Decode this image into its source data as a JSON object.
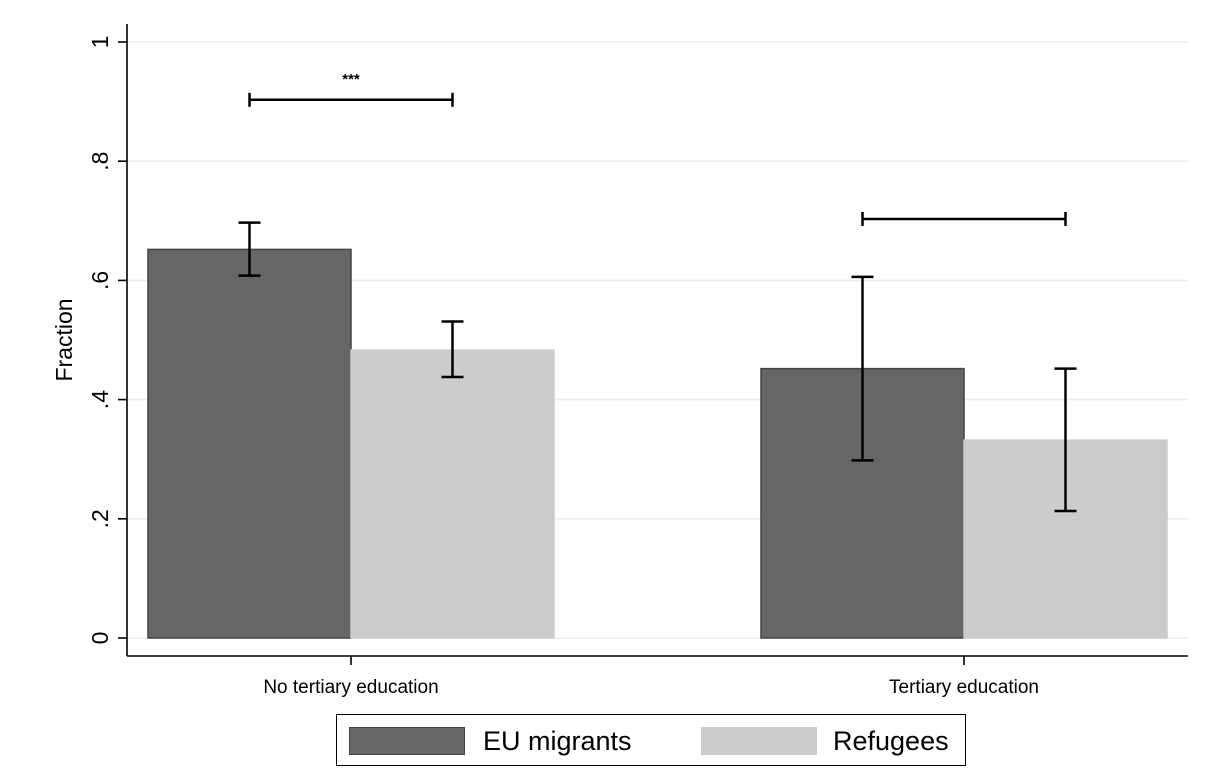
{
  "chart_data": {
    "type": "bar",
    "title": "",
    "xlabel": "",
    "ylabel": "Fraction",
    "ylim": [
      0,
      1
    ],
    "yticks": [
      {
        "value": 0,
        "label": "0"
      },
      {
        "value": 0.2,
        "label": ".2"
      },
      {
        "value": 0.4,
        "label": ".4"
      },
      {
        "value": 0.6,
        "label": ".6"
      },
      {
        "value": 0.8,
        "label": ".8"
      },
      {
        "value": 1,
        "label": "1"
      }
    ],
    "grid": true,
    "legend_position": "bottom",
    "categories": [
      "No tertiary education",
      "Tertiary education"
    ],
    "series": [
      {
        "name": "EU migrants",
        "color": "#666666",
        "values": [
          0.652,
          0.452
        ],
        "ci_low": [
          0.608,
          0.298
        ],
        "ci_high": [
          0.697,
          0.606
        ]
      },
      {
        "name": "Refugees",
        "color": "#cccccc",
        "values": [
          0.483,
          0.332
        ],
        "ci_low": [
          0.438,
          0.213
        ],
        "ci_high": [
          0.531,
          0.452
        ]
      }
    ],
    "comparisons": [
      {
        "category": "No tertiary education",
        "y": 0.903,
        "label": "***"
      },
      {
        "category": "Tertiary education",
        "y": 0.703,
        "label": ""
      }
    ]
  }
}
